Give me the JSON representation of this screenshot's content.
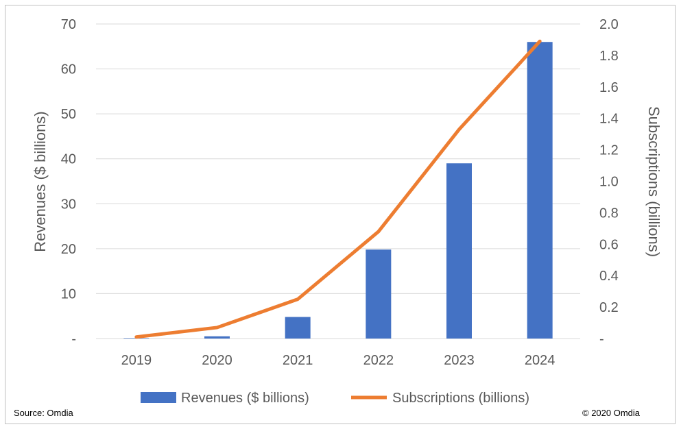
{
  "chart_data": {
    "type": "bar+line",
    "categories": [
      "2019",
      "2020",
      "2021",
      "2022",
      "2023",
      "2024"
    ],
    "series": [
      {
        "name": "Revenues ($ billions)",
        "type": "bar",
        "axis": "left",
        "color": "#4472C4",
        "values": [
          0.1,
          0.5,
          4.8,
          19.8,
          39.0,
          66.0
        ]
      },
      {
        "name": "Subscriptions (billions)",
        "type": "line",
        "axis": "right",
        "color": "#ED7D31",
        "values": [
          0.01,
          0.07,
          0.25,
          0.68,
          1.33,
          1.89
        ]
      }
    ],
    "left_axis": {
      "label": "Revenues ($ billions)",
      "min": 0,
      "max": 70,
      "ticks": [
        0,
        10,
        20,
        30,
        40,
        50,
        60,
        70
      ],
      "tick_labels": [
        "-",
        "10",
        "20",
        "30",
        "40",
        "50",
        "60",
        "70"
      ]
    },
    "right_axis": {
      "label": "Subscriptions (billions)",
      "min": 0,
      "max": 2.0,
      "ticks": [
        0,
        0.2,
        0.4,
        0.6,
        0.8,
        1.0,
        1.2,
        1.4,
        1.6,
        1.8,
        2.0
      ],
      "tick_labels": [
        "-",
        "0.2",
        "0.4",
        "0.6",
        "0.8",
        "1.0",
        "1.2",
        "1.4",
        "1.6",
        "1.8",
        "2.0"
      ]
    },
    "grid": true,
    "legend_position": "bottom",
    "gridline_color": "#d9d9d9"
  },
  "footer": {
    "source": "Source: Omdia",
    "copyright": "© 2020 Omdia"
  }
}
